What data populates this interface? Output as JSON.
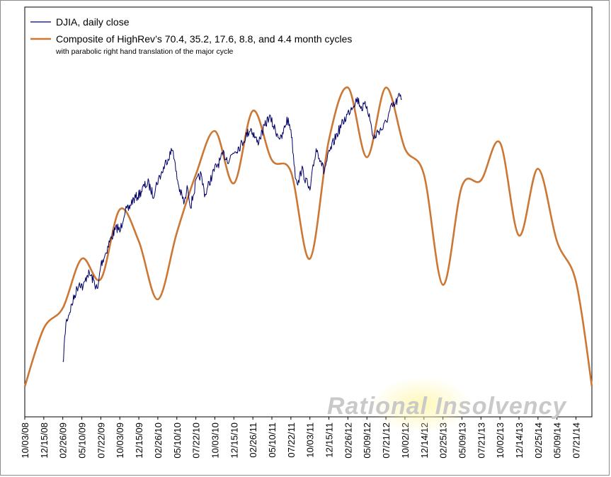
{
  "watermark": "Rational Insolvency",
  "chart_data": {
    "type": "line",
    "title": "",
    "xlabel": "",
    "ylabel": "",
    "grid": false,
    "legend_position": "top-left",
    "x_tick_labels": [
      "10/03/08",
      "12/15/08",
      "02/26/09",
      "05/10/09",
      "07/22/09",
      "10/03/09",
      "12/15/09",
      "02/26/10",
      "05/10/10",
      "07/22/10",
      "10/03/10",
      "12/15/10",
      "02/26/11",
      "05/10/11",
      "07/22/11",
      "10/03/11",
      "12/15/11",
      "02/26/12",
      "05/09/12",
      "07/21/12",
      "10/02/12",
      "12/14/12",
      "02/25/13",
      "05/09/13",
      "07/21/13",
      "10/02/13",
      "12/14/13",
      "02/25/14",
      "05/09/14",
      "07/21/14"
    ],
    "xlim": [
      "10/03/08",
      "09/20/14"
    ],
    "series": [
      {
        "name": "DJIA, daily close",
        "color": "#000066",
        "points": [
          [
            "02/26/09",
            0.07
          ],
          [
            "03/10/09",
            0.22
          ],
          [
            "03/25/09",
            0.26
          ],
          [
            "04/15/09",
            0.32
          ],
          [
            "05/01/09",
            0.36
          ],
          [
            "05/15/09",
            0.34
          ],
          [
            "06/01/09",
            0.39
          ],
          [
            "06/15/09",
            0.38
          ],
          [
            "07/01/09",
            0.35
          ],
          [
            "07/10/09",
            0.33
          ],
          [
            "07/22/09",
            0.42
          ],
          [
            "08/10/09",
            0.46
          ],
          [
            "08/25/09",
            0.5
          ],
          [
            "09/10/09",
            0.53
          ],
          [
            "09/25/09",
            0.55
          ],
          [
            "10/03/09",
            0.53
          ],
          [
            "10/20/09",
            0.6
          ],
          [
            "11/05/09",
            0.61
          ],
          [
            "11/20/09",
            0.64
          ],
          [
            "12/15/09",
            0.66
          ],
          [
            "01/05/10",
            0.69
          ],
          [
            "01/20/10",
            0.7
          ],
          [
            "02/08/10",
            0.66
          ],
          [
            "02/26/10",
            0.71
          ],
          [
            "03/15/10",
            0.74
          ],
          [
            "04/01/10",
            0.78
          ],
          [
            "04/26/10",
            0.82
          ],
          [
            "05/06/10",
            0.74
          ],
          [
            "05/20/10",
            0.68
          ],
          [
            "06/08/10",
            0.63
          ],
          [
            "06/21/10",
            0.69
          ],
          [
            "07/02/10",
            0.62
          ],
          [
            "07/22/10",
            0.7
          ],
          [
            "08/09/10",
            0.73
          ],
          [
            "08/27/10",
            0.66
          ],
          [
            "09/15/10",
            0.71
          ],
          [
            "10/03/10",
            0.75
          ],
          [
            "10/25/10",
            0.78
          ],
          [
            "11/05/10",
            0.8
          ],
          [
            "11/25/10",
            0.78
          ],
          [
            "12/15/10",
            0.81
          ],
          [
            "01/10/11",
            0.83
          ],
          [
            "01/28/11",
            0.86
          ],
          [
            "02/18/11",
            0.89
          ],
          [
            "03/16/11",
            0.84
          ],
          [
            "04/05/11",
            0.88
          ],
          [
            "04/29/11",
            0.93
          ],
          [
            "05/10/11",
            0.91
          ],
          [
            "05/25/11",
            0.88
          ],
          [
            "06/15/11",
            0.85
          ],
          [
            "07/07/11",
            0.92
          ],
          [
            "07/22/11",
            0.89
          ],
          [
            "08/08/11",
            0.73
          ],
          [
            "08/20/11",
            0.7
          ],
          [
            "09/01/11",
            0.75
          ],
          [
            "09/22/11",
            0.7
          ],
          [
            "10/03/11",
            0.67
          ],
          [
            "10/15/11",
            0.75
          ],
          [
            "10/27/11",
            0.82
          ],
          [
            "11/15/11",
            0.78
          ],
          [
            "11/25/11",
            0.74
          ],
          [
            "12/15/11",
            0.8
          ],
          [
            "01/10/12",
            0.86
          ],
          [
            "02/01/12",
            0.9
          ],
          [
            "02/26/12",
            0.94
          ],
          [
            "03/15/12",
            0.97
          ],
          [
            "04/02/12",
            0.99
          ],
          [
            "04/20/12",
            0.96
          ],
          [
            "05/09/12",
            0.97
          ],
          [
            "05/25/12",
            0.9
          ],
          [
            "06/04/12",
            0.85
          ],
          [
            "06/20/12",
            0.88
          ],
          [
            "07/10/12",
            0.89
          ],
          [
            "07/21/12",
            0.91
          ],
          [
            "08/10/12",
            0.96
          ],
          [
            "08/25/12",
            0.97
          ],
          [
            "09/10/12",
            1.0
          ],
          [
            "09/20/12",
            0.99
          ]
        ]
      },
      {
        "name": "Composite of HighRev’s 70.4, 35.2, 17.6, 8.8, and 4.4 month cycles",
        "subtitle": "with parabolic right hand translation of the major cycle",
        "color": "#cc7733",
        "points": [
          [
            "10/03/08",
            0.0
          ],
          [
            "12/15/08",
            0.2
          ],
          [
            "02/26/09",
            0.27
          ],
          [
            "05/10/09",
            0.44
          ],
          [
            "07/22/09",
            0.37
          ],
          [
            "10/03/09",
            0.61
          ],
          [
            "12/15/09",
            0.5
          ],
          [
            "02/26/10",
            0.3
          ],
          [
            "05/10/10",
            0.53
          ],
          [
            "07/22/10",
            0.73
          ],
          [
            "10/03/10",
            0.88
          ],
          [
            "12/15/10",
            0.7
          ],
          [
            "02/26/11",
            0.95
          ],
          [
            "05/10/11",
            0.78
          ],
          [
            "07/22/11",
            0.74
          ],
          [
            "10/03/11",
            0.44
          ],
          [
            "12/15/11",
            0.85
          ],
          [
            "02/26/12",
            1.03
          ],
          [
            "05/09/12",
            0.79
          ],
          [
            "07/21/12",
            1.03
          ],
          [
            "10/02/12",
            0.82
          ],
          [
            "12/14/12",
            0.73
          ],
          [
            "02/25/13",
            0.35
          ],
          [
            "05/09/13",
            0.69
          ],
          [
            "07/21/13",
            0.71
          ],
          [
            "10/02/13",
            0.84
          ],
          [
            "12/14/13",
            0.52
          ],
          [
            "02/25/14",
            0.75
          ],
          [
            "05/09/14",
            0.5
          ],
          [
            "07/21/14",
            0.36
          ],
          [
            "09/20/14",
            0.0
          ]
        ]
      }
    ]
  }
}
